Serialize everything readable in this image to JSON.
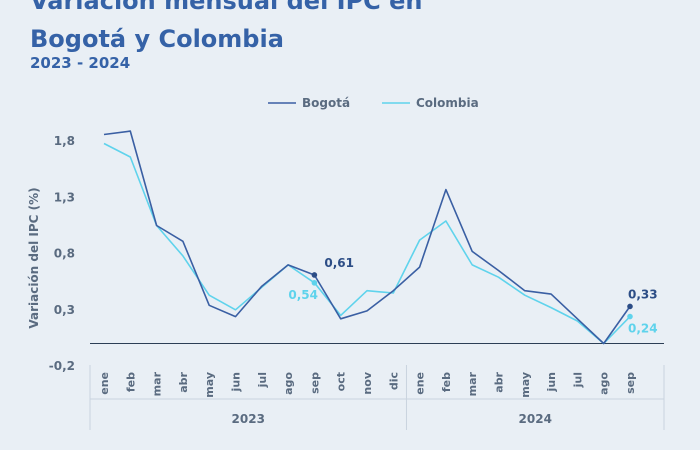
{
  "header": {
    "title_line1": "Variación mensual del IPC en",
    "title_line2": "Bogotá y Colombia",
    "subtitle": "2023 - 2024"
  },
  "colors": {
    "background": "#e9eff5",
    "bogota": "#3a5fa3",
    "colombia": "#5fd3ec",
    "title": "#3562a7",
    "axis_text": "#5a6b80"
  },
  "chart_data": {
    "type": "line",
    "ylabel": "Variación del IPC (%)",
    "ylim": [
      -0.2,
      1.9
    ],
    "yticks": [
      -0.2,
      0.3,
      0.8,
      1.3,
      1.8
    ],
    "ytick_labels": [
      "-0,2",
      "0,3",
      "0,8",
      "1,3",
      "1,8"
    ],
    "categories": [
      "ene",
      "feb",
      "mar",
      "abr",
      "may",
      "jun",
      "jul",
      "ago",
      "sep",
      "oct",
      "nov",
      "dic",
      "ene",
      "feb",
      "mar",
      "abr",
      "may",
      "jun",
      "jul",
      "ago",
      "sep"
    ],
    "year_groups": [
      {
        "label": "2023",
        "count": 12
      },
      {
        "label": "2024",
        "count": 9
      }
    ],
    "legend_position": "top-center",
    "series": [
      {
        "name": "Bogotá",
        "values": [
          1.86,
          1.89,
          1.05,
          0.91,
          0.34,
          0.24,
          0.51,
          0.7,
          0.61,
          0.22,
          0.29,
          0.47,
          0.68,
          1.37,
          0.82,
          0.65,
          0.47,
          0.44,
          0.22,
          0.0,
          0.33
        ]
      },
      {
        "name": "Colombia",
        "values": [
          1.78,
          1.66,
          1.05,
          0.78,
          0.43,
          0.3,
          0.5,
          0.7,
          0.54,
          0.25,
          0.47,
          0.45,
          0.92,
          1.09,
          0.7,
          0.59,
          0.43,
          0.32,
          0.2,
          0.0,
          0.24
        ]
      }
    ],
    "annotations": [
      {
        "series": "Bogotá",
        "index": 8,
        "label": "0,61"
      },
      {
        "series": "Colombia",
        "index": 8,
        "label": "0,54"
      },
      {
        "series": "Bogotá",
        "index": 20,
        "label": "0,33"
      },
      {
        "series": "Colombia",
        "index": 20,
        "label": "0,24"
      }
    ]
  }
}
